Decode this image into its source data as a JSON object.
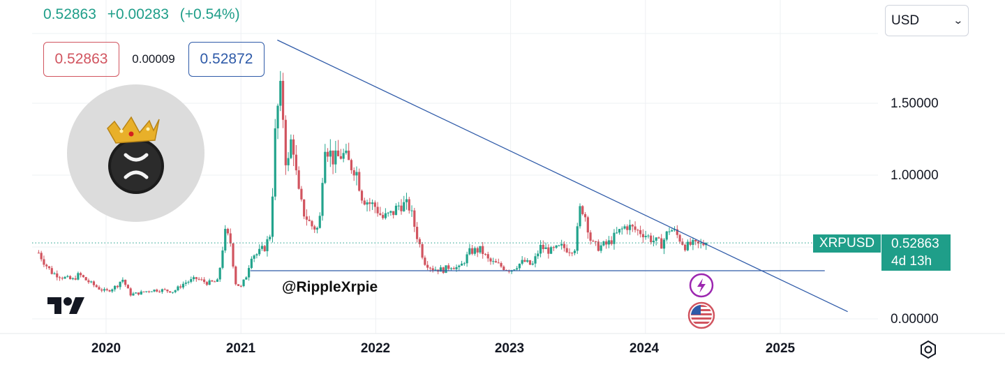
{
  "header": {
    "last_price": "0.52863",
    "change": "+0.00283",
    "change_pct": "(+0.54%)"
  },
  "quote_boxes": {
    "bid": "0.52863",
    "spread": "0.00009",
    "ask": "0.52872"
  },
  "currency_select": {
    "value": "USD",
    "icon": "chevron-down-icon"
  },
  "watermark": "@RippleXrpie",
  "price_tag": {
    "symbol": "XRPUSD",
    "price": "0.52863",
    "countdown": "4d 13h"
  },
  "chart_data": {
    "type": "candlestick",
    "symbol": "XRPUSD",
    "interval": "weekly",
    "y_ticks": [
      "0.00000",
      "1.00000",
      "1.50000"
    ],
    "x_ticks": [
      "2020",
      "2021",
      "2022",
      "2023",
      "2024",
      "2025"
    ],
    "ylim": [
      -0.05,
      1.95
    ],
    "xlim": [
      2019.5,
      2025.7
    ],
    "grid": true,
    "colors": {
      "up": "#22a38c",
      "down": "#d1545f",
      "trendline": "#2e5aa8",
      "last_price_line": "#1f9e89"
    },
    "last_price": 0.52863,
    "ohlc_path": [
      [
        2019.5,
        0.46
      ],
      [
        2019.55,
        0.38
      ],
      [
        2019.6,
        0.32
      ],
      [
        2019.68,
        0.29
      ],
      [
        2019.75,
        0.27
      ],
      [
        2019.8,
        0.31
      ],
      [
        2019.85,
        0.27
      ],
      [
        2019.9,
        0.24
      ],
      [
        2019.95,
        0.21
      ],
      [
        2020.0,
        0.19
      ],
      [
        2020.08,
        0.23
      ],
      [
        2020.12,
        0.28
      ],
      [
        2020.18,
        0.17
      ],
      [
        2020.25,
        0.18
      ],
      [
        2020.33,
        0.2
      ],
      [
        2020.42,
        0.2
      ],
      [
        2020.5,
        0.19
      ],
      [
        2020.58,
        0.25
      ],
      [
        2020.67,
        0.28
      ],
      [
        2020.75,
        0.25
      ],
      [
        2020.83,
        0.26
      ],
      [
        2020.88,
        0.6
      ],
      [
        2020.92,
        0.55
      ],
      [
        2020.96,
        0.25
      ],
      [
        2021.0,
        0.22
      ],
      [
        2021.04,
        0.3
      ],
      [
        2021.08,
        0.45
      ],
      [
        2021.12,
        0.45
      ],
      [
        2021.18,
        0.5
      ],
      [
        2021.22,
        0.6
      ],
      [
        2021.26,
        1.4
      ],
      [
        2021.3,
        1.6
      ],
      [
        2021.34,
        1.0
      ],
      [
        2021.38,
        1.3
      ],
      [
        2021.42,
        0.9
      ],
      [
        2021.46,
        0.75
      ],
      [
        2021.52,
        0.65
      ],
      [
        2021.58,
        0.62
      ],
      [
        2021.62,
        1.25
      ],
      [
        2021.66,
        1.15
      ],
      [
        2021.7,
        1.1
      ],
      [
        2021.75,
        1.15
      ],
      [
        2021.8,
        1.08
      ],
      [
        2021.85,
        1.05
      ],
      [
        2021.9,
        0.85
      ],
      [
        2021.96,
        0.8
      ],
      [
        2022.0,
        0.78
      ],
      [
        2022.05,
        0.7
      ],
      [
        2022.12,
        0.73
      ],
      [
        2022.18,
        0.8
      ],
      [
        2022.25,
        0.78
      ],
      [
        2022.3,
        0.6
      ],
      [
        2022.36,
        0.4
      ],
      [
        2022.42,
        0.35
      ],
      [
        2022.5,
        0.34
      ],
      [
        2022.56,
        0.37
      ],
      [
        2022.62,
        0.35
      ],
      [
        2022.7,
        0.47
      ],
      [
        2022.78,
        0.48
      ],
      [
        2022.84,
        0.4
      ],
      [
        2022.9,
        0.38
      ],
      [
        2022.96,
        0.35
      ],
      [
        2023.0,
        0.34
      ],
      [
        2023.06,
        0.38
      ],
      [
        2023.1,
        0.4
      ],
      [
        2023.16,
        0.37
      ],
      [
        2023.22,
        0.5
      ],
      [
        2023.3,
        0.47
      ],
      [
        2023.38,
        0.5
      ],
      [
        2023.44,
        0.48
      ],
      [
        2023.48,
        0.5
      ],
      [
        2023.52,
        0.8
      ],
      [
        2023.56,
        0.7
      ],
      [
        2023.6,
        0.52
      ],
      [
        2023.65,
        0.5
      ],
      [
        2023.72,
        0.52
      ],
      [
        2023.8,
        0.6
      ],
      [
        2023.86,
        0.65
      ],
      [
        2023.92,
        0.62
      ],
      [
        2023.98,
        0.6
      ],
      [
        2024.05,
        0.55
      ],
      [
        2024.12,
        0.52
      ],
      [
        2024.18,
        0.63
      ],
      [
        2024.22,
        0.6
      ],
      [
        2024.26,
        0.55
      ],
      [
        2024.3,
        0.5
      ],
      [
        2024.34,
        0.52
      ],
      [
        2024.38,
        0.51
      ],
      [
        2024.42,
        0.52
      ],
      [
        2024.45,
        0.52863
      ]
    ],
    "annotations": [
      {
        "type": "trendline",
        "points": [
          [
            2021.27,
            1.94
          ],
          [
            2025.5,
            0.05
          ]
        ]
      },
      {
        "type": "horizontal_support",
        "y": 0.335,
        "x_range": [
          2021.07,
          2025.33
        ]
      }
    ],
    "event_icons": [
      "lightning-icon",
      "us-flag-icon"
    ]
  }
}
